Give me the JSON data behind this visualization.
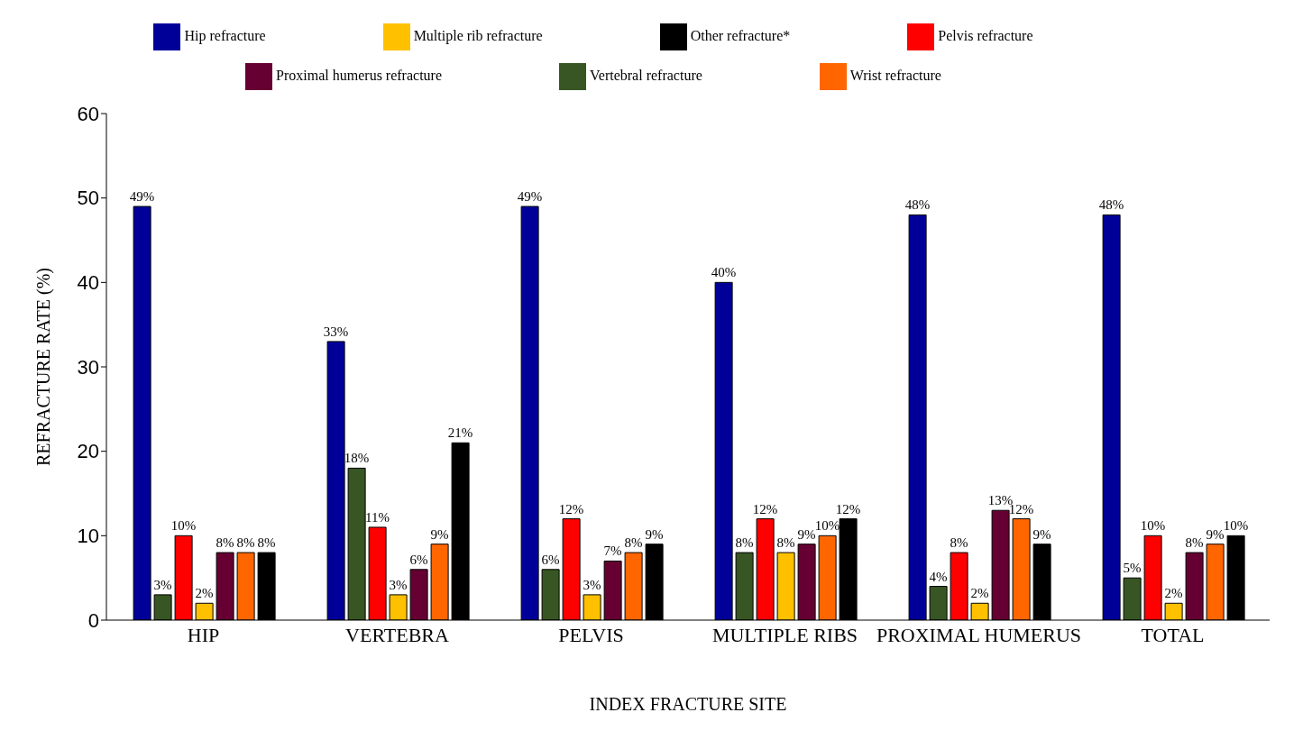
{
  "chart_data": {
    "type": "bar",
    "xlabel": "INDEX FRACTURE SITE",
    "ylabel": "REFRACTURE RATE (%)",
    "categories": [
      "HIP",
      "VERTEBRA",
      "PELVIS",
      "MULTIPLE RIBS",
      "PROXIMAL HUMERUS",
      "TOTAL"
    ],
    "series": [
      {
        "name": "Hip refracture",
        "color": "#000099",
        "values": [
          49,
          33,
          49,
          40,
          48,
          48
        ],
        "value_labels": [
          "49%",
          "33%",
          "49%",
          "40%",
          "48%",
          "48%"
        ]
      },
      {
        "name": "Vertebral refracture",
        "color": "#375623",
        "values": [
          3,
          18,
          6,
          8,
          4,
          5
        ],
        "value_labels": [
          "3%",
          "18%",
          "6%",
          "8%",
          "4%",
          "5%"
        ]
      },
      {
        "name": "Pelvis refracture",
        "color": "#ff0000",
        "values": [
          10,
          11,
          12,
          12,
          8,
          10
        ],
        "value_labels": [
          "10%",
          "11%",
          "12%",
          "12%",
          "8%",
          "10%"
        ]
      },
      {
        "name": "Multiple rib refracture",
        "color": "#ffc000",
        "values": [
          2,
          3,
          3,
          8,
          2,
          2
        ],
        "value_labels": [
          "2%",
          "3%",
          "3%",
          "8%",
          "2%",
          "2%"
        ]
      },
      {
        "name": "Proximal humerus refracture",
        "color": "#660033",
        "values": [
          8,
          6,
          7,
          9,
          13,
          8
        ],
        "value_labels": [
          "8%",
          "6%",
          "7%",
          "9%",
          "13%",
          "8%"
        ]
      },
      {
        "name": "Wrist refracture",
        "color": "#ff6600",
        "values": [
          8,
          9,
          8,
          10,
          12,
          9
        ],
        "value_labels": [
          "8%",
          "9%",
          "8%",
          "10%",
          "12%",
          "9%"
        ]
      },
      {
        "name": "Other refracture*",
        "color": "#000000",
        "values": [
          8,
          21,
          9,
          12,
          9,
          10
        ],
        "value_labels": [
          "8%",
          "21%",
          "9%",
          "12%",
          "9%",
          "10%"
        ]
      }
    ],
    "ylim": [
      0,
      60
    ],
    "yticks": [
      0,
      10,
      20,
      30,
      40,
      50,
      60
    ],
    "grid": false,
    "legend": "top"
  }
}
